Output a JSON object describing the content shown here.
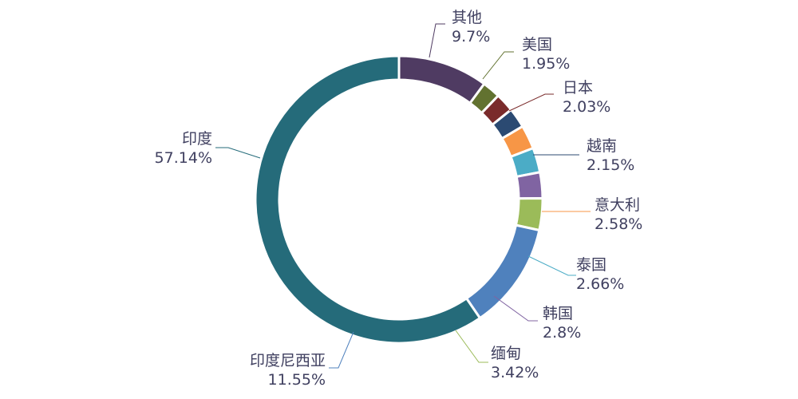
{
  "chart_data": {
    "type": "pie",
    "donut": true,
    "start": "top, clockwise",
    "unit": "%",
    "slices": [
      {
        "name": "其他",
        "value": 9.7,
        "label": "9.7%",
        "color": "#4F3B62"
      },
      {
        "name": "美国",
        "value": 1.95,
        "label": "1.95%",
        "color": "#627230"
      },
      {
        "name": "日本",
        "value": 2.03,
        "label": "2.03%",
        "color": "#7A2B2B"
      },
      {
        "name": "越南",
        "value": 2.15,
        "label": "2.15%",
        "color": "#2B4A72"
      },
      {
        "name": "意大利",
        "value": 2.58,
        "label": "2.58%",
        "color": "#F79646"
      },
      {
        "name": "泰国",
        "value": 2.66,
        "label": "2.66%",
        "color": "#4BACC6"
      },
      {
        "name": "韩国",
        "value": 2.8,
        "label": "2.8%",
        "color": "#8064A2"
      },
      {
        "name": "缅甸",
        "value": 3.42,
        "label": "3.42%",
        "color": "#9BBB59"
      },
      {
        "name": "印度尼西亚",
        "value": 11.55,
        "label": "11.55%",
        "color": "#C0504D"
      },
      {
        "name": "印度",
        "value": 57.14,
        "label": "57.14%",
        "color": "#4F81BD"
      }
    ],
    "title": "",
    "legend": "none",
    "data_labels": "outside with leader lines"
  }
}
